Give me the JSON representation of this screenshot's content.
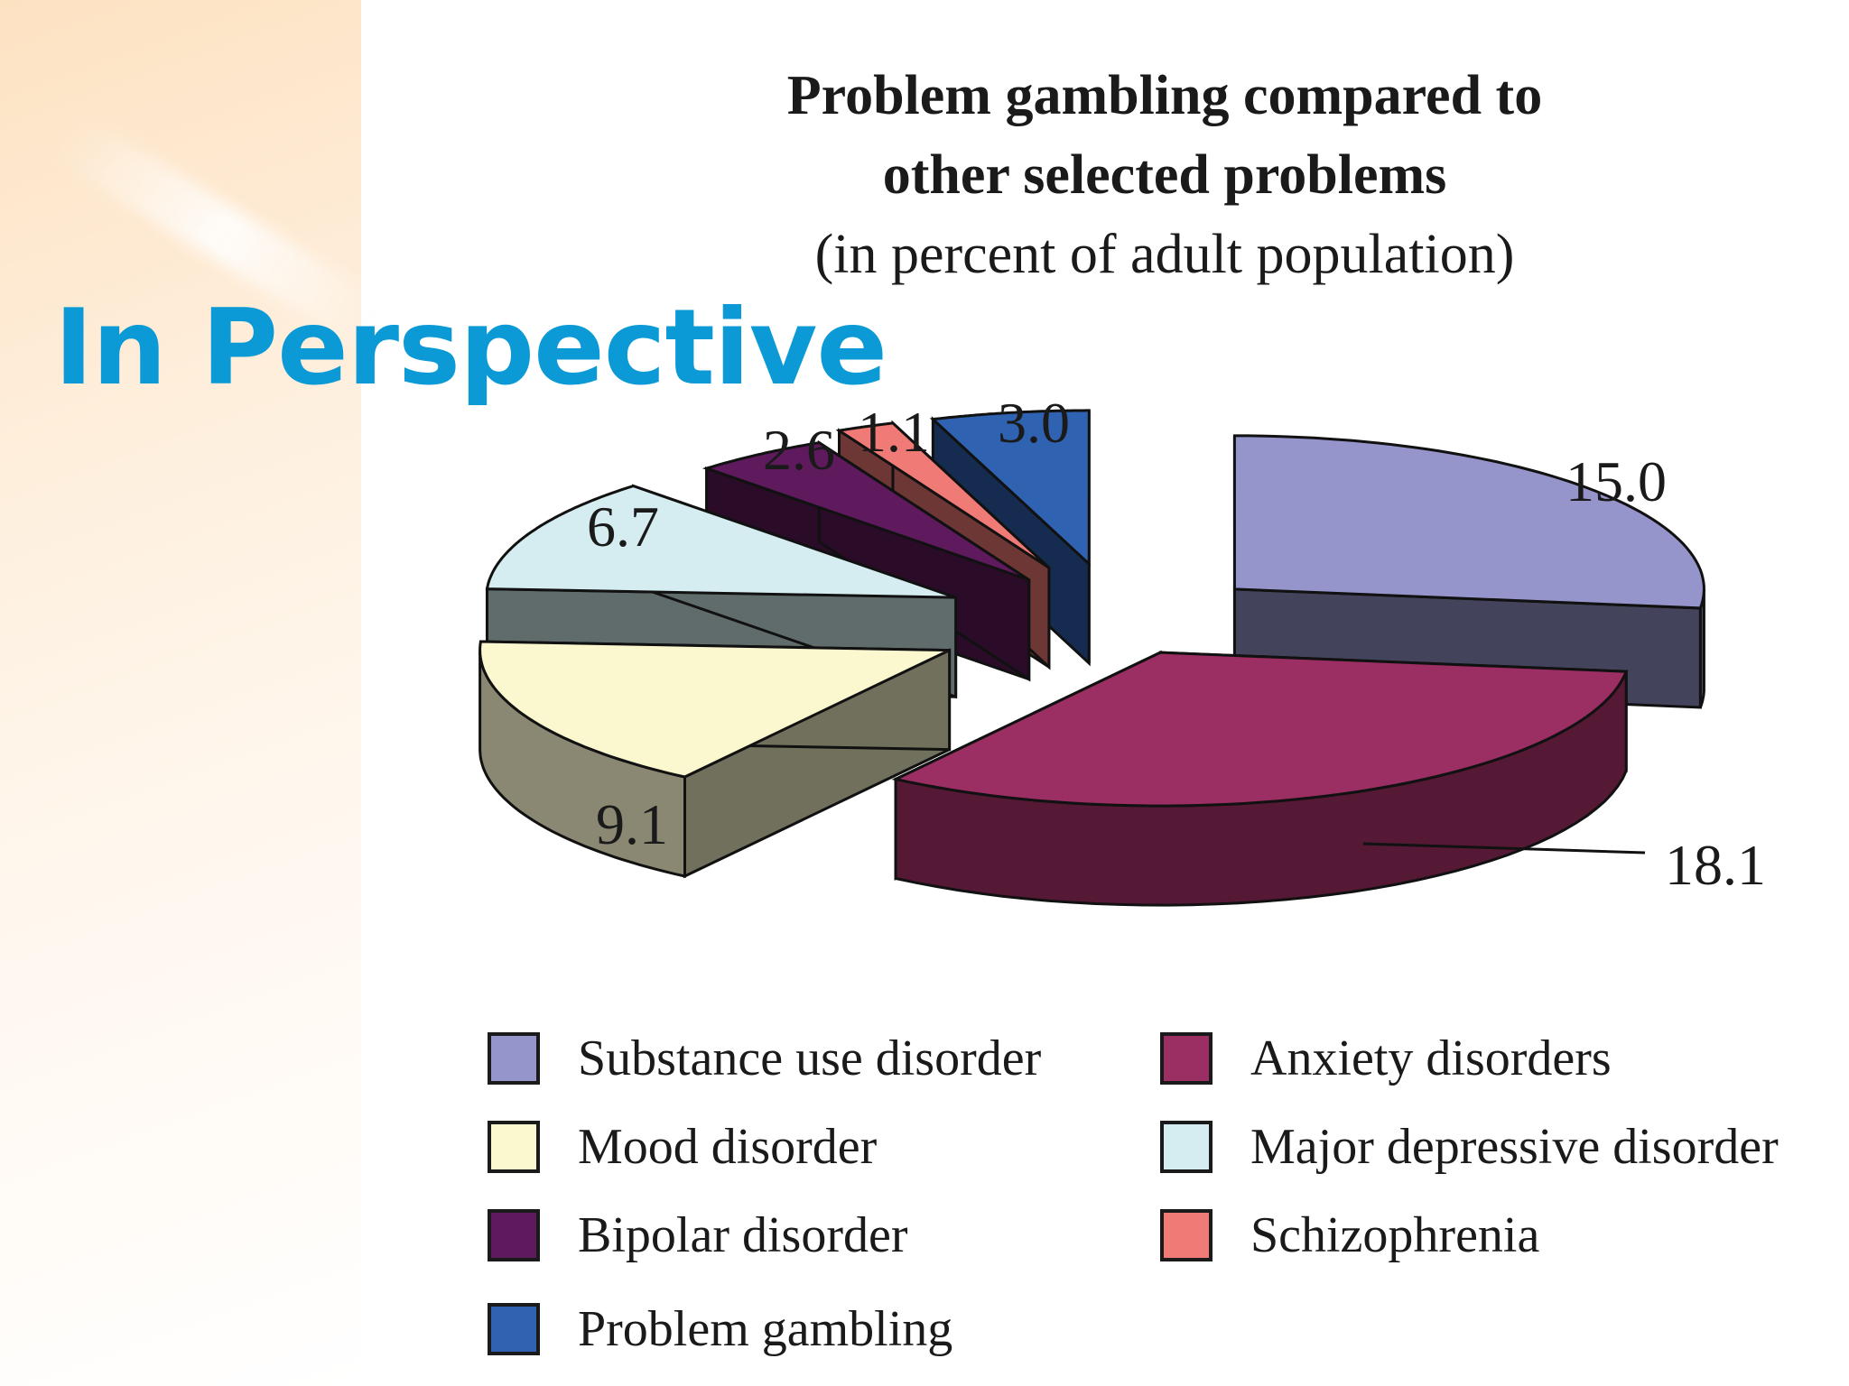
{
  "slide": {
    "title": "In Perspective"
  },
  "chart_data": {
    "type": "pie",
    "title_line1": "Problem gambling compared to",
    "title_line2": "other selected problems",
    "subtitle": "(in percent of adult population)",
    "slices": [
      {
        "name": "Substance use disorder",
        "value": 15.0,
        "label": "15.0",
        "color": "#9595cc"
      },
      {
        "name": "Anxiety disorders",
        "value": 18.1,
        "label": "18.1",
        "color": "#9b2e62"
      },
      {
        "name": "Mood disorder",
        "value": 9.1,
        "label": "9.1",
        "color": "#fbf8cf"
      },
      {
        "name": "Major depressive disorder",
        "value": 6.7,
        "label": "6.7",
        "color": "#d5edf1"
      },
      {
        "name": "Bipolar disorder",
        "value": 2.6,
        "label": "2.6",
        "color": "#5e1a5c"
      },
      {
        "name": "Schizophrenia",
        "value": 1.1,
        "label": "1.1",
        "color": "#ef7a76"
      },
      {
        "name": "Problem gambling",
        "value": 3.0,
        "label": "3.0",
        "color": "#2f62b1"
      }
    ],
    "legend": {
      "placement": "bottom",
      "columns": 2
    }
  }
}
